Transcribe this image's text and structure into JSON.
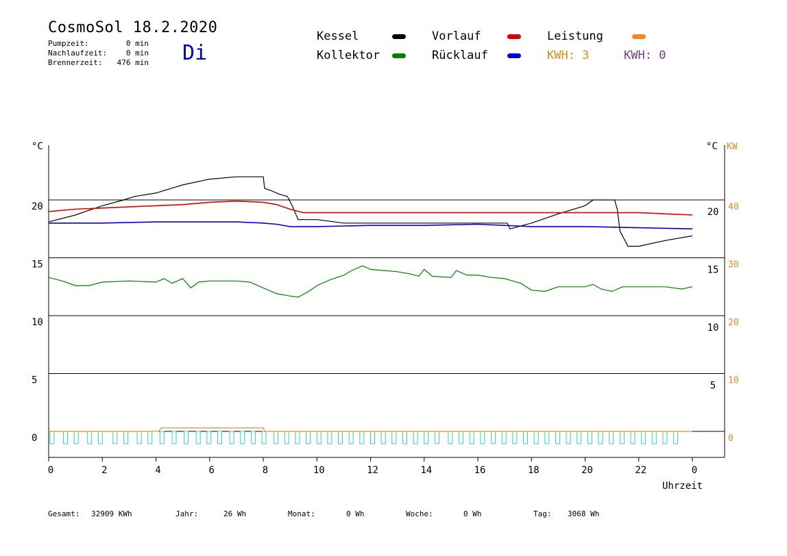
{
  "header": {
    "title": "CosmoSol 18.2.2020",
    "weekday": "Di",
    "stats": [
      {
        "label": "Pumpzeit:",
        "value": "0 min"
      },
      {
        "label": "Nachlaufzeit:",
        "value": "0 min"
      },
      {
        "label": "Brennerzeit:",
        "value": "476 min"
      }
    ]
  },
  "legend": {
    "items": [
      {
        "name": "Kessel",
        "color": "#000000"
      },
      {
        "name": "Vorlauf",
        "color": "#dd0000"
      },
      {
        "name": "Leistung",
        "color": "#f08a1e"
      },
      {
        "name": "Kollektor",
        "color": "#008000"
      },
      {
        "name": "Rücklauf",
        "color": "#0000dd"
      }
    ],
    "kwh1": "KWH: 3",
    "kwh2": "KWH: 0"
  },
  "axes": {
    "left_unit": "°C",
    "right_unit_c": "°C",
    "right_unit_kw": "KW",
    "xlabel": "Uhrzeit"
  },
  "chart_data": {
    "type": "line",
    "x_ticks": [
      "0",
      "2",
      "4",
      "6",
      "8",
      "10",
      "12",
      "14",
      "16",
      "18",
      "20",
      "22",
      "0"
    ],
    "x_range": [
      0,
      24
    ],
    "y_range_c": [
      0,
      20
    ],
    "y_ticks_left": [
      "20",
      "15",
      "10",
      "5",
      "0"
    ],
    "y_ticks_right_c": [
      "20",
      "15",
      "10",
      "5"
    ],
    "y_ticks_right_kw": [
      "40",
      "30",
      "20",
      "10",
      "0"
    ],
    "grid": "horizontal",
    "colors": {
      "kessel": "#000000",
      "vorlauf": "#dd0000",
      "ruecklauf": "#0000dd",
      "kollektor": "#008000",
      "leistung": "#f08a1e",
      "pump": "#33cccc"
    },
    "series": [
      {
        "name": "Kessel",
        "points": [
          [
            0,
            18.1
          ],
          [
            1,
            18.7
          ],
          [
            2,
            19.5
          ],
          [
            2.8,
            20
          ],
          [
            3.2,
            20.3
          ],
          [
            4,
            20.6
          ],
          [
            5,
            21.3
          ],
          [
            6,
            21.8
          ],
          [
            7,
            22
          ],
          [
            8,
            22
          ],
          [
            8.05,
            21
          ],
          [
            8.3,
            20.8
          ],
          [
            8.6,
            20.5
          ],
          [
            8.9,
            20.3
          ],
          [
            9.1,
            19.4
          ],
          [
            9.3,
            18.3
          ],
          [
            10,
            18.3
          ],
          [
            11,
            18
          ],
          [
            12,
            18
          ],
          [
            13,
            18
          ],
          [
            14,
            18
          ],
          [
            15,
            18
          ],
          [
            16,
            18
          ],
          [
            17.1,
            18
          ],
          [
            17.2,
            17.5
          ],
          [
            18,
            18
          ],
          [
            19,
            18.8
          ],
          [
            20,
            19.5
          ],
          [
            20.3,
            20
          ],
          [
            21.1,
            20
          ],
          [
            21.2,
            19.2
          ],
          [
            21.3,
            17.3
          ],
          [
            21.6,
            16
          ],
          [
            22,
            16
          ],
          [
            23,
            16.5
          ],
          [
            24,
            16.9
          ]
        ]
      },
      {
        "name": "Vorlauf",
        "points": [
          [
            0,
            19
          ],
          [
            1,
            19.2
          ],
          [
            2,
            19.3
          ],
          [
            3,
            19.4
          ],
          [
            4,
            19.5
          ],
          [
            5,
            19.6
          ],
          [
            6,
            19.8
          ],
          [
            7,
            19.9
          ],
          [
            8,
            19.8
          ],
          [
            8.5,
            19.6
          ],
          [
            9,
            19.2
          ],
          [
            9.5,
            18.9
          ],
          [
            10,
            18.9
          ],
          [
            12,
            18.9
          ],
          [
            14,
            18.9
          ],
          [
            16,
            18.9
          ],
          [
            18,
            18.9
          ],
          [
            20,
            18.9
          ],
          [
            22,
            18.9
          ],
          [
            23,
            18.8
          ],
          [
            24,
            18.7
          ]
        ]
      },
      {
        "name": "Rücklauf",
        "points": [
          [
            0,
            18
          ],
          [
            2,
            18
          ],
          [
            4,
            18.1
          ],
          [
            6,
            18.1
          ],
          [
            7,
            18.1
          ],
          [
            8,
            18
          ],
          [
            8.5,
            17.9
          ],
          [
            9,
            17.7
          ],
          [
            10,
            17.7
          ],
          [
            12,
            17.8
          ],
          [
            14,
            17.8
          ],
          [
            16,
            17.9
          ],
          [
            17,
            17.8
          ],
          [
            18,
            17.7
          ],
          [
            20,
            17.7
          ],
          [
            22,
            17.6
          ],
          [
            24,
            17.5
          ]
        ]
      },
      {
        "name": "Kollektor",
        "points": [
          [
            0,
            13.3
          ],
          [
            0.5,
            13
          ],
          [
            1,
            12.6
          ],
          [
            1.5,
            12.6
          ],
          [
            2,
            12.9
          ],
          [
            3,
            13
          ],
          [
            4,
            12.9
          ],
          [
            4.3,
            13.2
          ],
          [
            4.6,
            12.8
          ],
          [
            5,
            13.2
          ],
          [
            5.3,
            12.4
          ],
          [
            5.6,
            12.9
          ],
          [
            6,
            13
          ],
          [
            7,
            13
          ],
          [
            7.5,
            12.9
          ],
          [
            8,
            12.4
          ],
          [
            8.5,
            11.9
          ],
          [
            9,
            11.7
          ],
          [
            9.3,
            11.6
          ],
          [
            9.7,
            12.1
          ],
          [
            10,
            12.6
          ],
          [
            10.5,
            13.1
          ],
          [
            11,
            13.5
          ],
          [
            11.3,
            13.9
          ],
          [
            11.7,
            14.3
          ],
          [
            12,
            14
          ],
          [
            12.5,
            13.9
          ],
          [
            13,
            13.8
          ],
          [
            13.5,
            13.6
          ],
          [
            13.8,
            13.4
          ],
          [
            14,
            14
          ],
          [
            14.3,
            13.4
          ],
          [
            15,
            13.3
          ],
          [
            15.2,
            13.9
          ],
          [
            15.6,
            13.5
          ],
          [
            16,
            13.5
          ],
          [
            16.5,
            13.3
          ],
          [
            17,
            13.2
          ],
          [
            17.3,
            13
          ],
          [
            17.6,
            12.8
          ],
          [
            18,
            12.2
          ],
          [
            18.5,
            12.1
          ],
          [
            19,
            12.5
          ],
          [
            19.5,
            12.5
          ],
          [
            20,
            12.5
          ],
          [
            20.3,
            12.7
          ],
          [
            20.6,
            12.3
          ],
          [
            21,
            12.1
          ],
          [
            21.4,
            12.5
          ],
          [
            22,
            12.5
          ],
          [
            23,
            12.5
          ],
          [
            23.6,
            12.3
          ],
          [
            24,
            12.5
          ]
        ]
      },
      {
        "name": "Leistung",
        "unit": "kW",
        "points": [
          [
            0,
            0
          ],
          [
            4.1,
            0
          ],
          [
            4.2,
            0.3
          ],
          [
            8,
            0.3
          ],
          [
            8.05,
            0
          ],
          [
            24,
            0
          ]
        ]
      }
    ],
    "pump_pulses_hours": [
      0.05,
      0.55,
      0.95,
      1.45,
      1.85,
      2.4,
      2.8,
      3.3,
      3.7,
      4.15,
      4.6,
      5.05,
      5.5,
      5.9,
      6.3,
      6.75,
      7.15,
      7.55,
      7.95,
      8.4,
      8.8,
      9.2,
      9.6,
      10,
      10.4,
      10.8,
      11.2,
      11.6,
      12,
      12.4,
      12.8,
      13.2,
      13.6,
      14,
      14.4,
      14.9,
      15.3,
      15.7,
      16.1,
      16.5,
      16.9,
      17.3,
      17.7,
      18.1,
      18.5,
      18.9,
      19.3,
      19.7,
      20.1,
      20.5,
      20.9,
      21.3,
      21.7,
      22.1,
      22.5,
      22.9,
      23.3
    ]
  },
  "footer": {
    "items": [
      {
        "label": "Gesamt:",
        "value": "32909 KWh"
      },
      {
        "label": "Jahr:",
        "value": "26 Wh"
      },
      {
        "label": "Monat:",
        "value": "0 Wh"
      },
      {
        "label": "Woche:",
        "value": "0 Wh"
      },
      {
        "label": "Tag:",
        "value": "3068 Wh"
      }
    ]
  }
}
